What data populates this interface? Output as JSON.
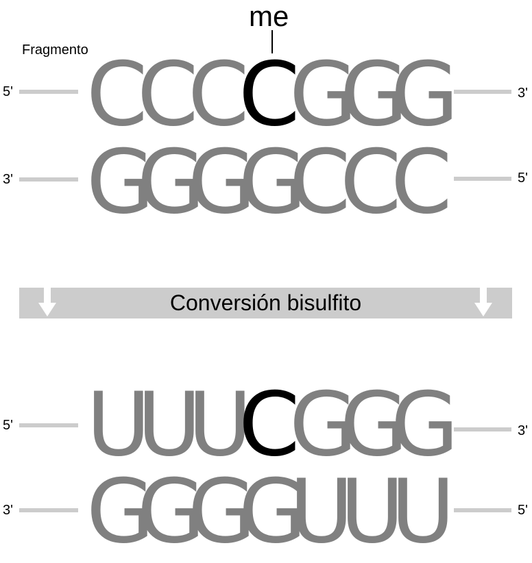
{
  "fragment_label": "Fragmento",
  "methyl_label": "me",
  "conversion_label": "Conversión bisulfito",
  "colors": {
    "base": "#808080",
    "methylated": "#000000",
    "strand_line": "#cccccc",
    "banner": "#cccccc"
  },
  "before": {
    "top": {
      "left_end": "5'",
      "right_end": "3'",
      "bases": [
        "C",
        "C",
        "C",
        "C",
        "G",
        "G",
        "G"
      ],
      "highlight_index": 3
    },
    "bottom": {
      "left_end": "3'",
      "right_end": "5'",
      "bases": [
        "G",
        "G",
        "G",
        "G",
        "C",
        "C",
        "C"
      ]
    }
  },
  "after": {
    "top": {
      "left_end": "5'",
      "right_end": "3'",
      "bases": [
        "U",
        "U",
        "U",
        "C",
        "G",
        "G",
        "G"
      ],
      "highlight_index": 3
    },
    "bottom": {
      "left_end": "3'",
      "right_end": "5'",
      "bases": [
        "G",
        "G",
        "G",
        "G",
        "U",
        "U",
        "U"
      ]
    }
  }
}
